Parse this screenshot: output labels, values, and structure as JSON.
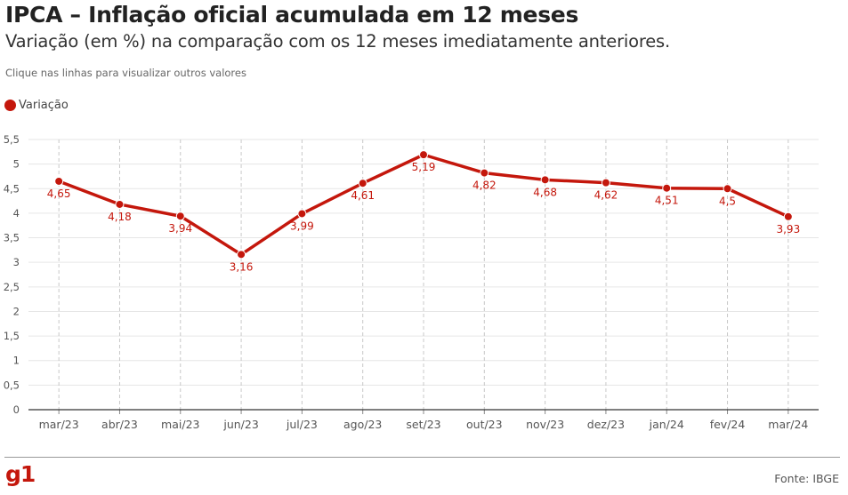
{
  "header": {
    "title": "IPCA – Inflação oficial acumulada em 12 meses",
    "subtitle": "Variação (em %) na comparação com os 12 meses imediatamente anteriores.",
    "hint": "Clique nas linhas para visualizar outros valores"
  },
  "footer": {
    "logo": "g1",
    "source": "Fonte: IBGE"
  },
  "colors": {
    "series": "#c4170c",
    "grid": "#e6e6e6",
    "axis": "#333333"
  },
  "chart_data": {
    "type": "line",
    "title": "IPCA – Inflação oficial acumulada em 12 meses",
    "subtitle": "Variação (em %) na comparação com os 12 meses imediatamente anteriores.",
    "categories": [
      "mar/23",
      "abr/23",
      "mai/23",
      "jun/23",
      "jul/23",
      "ago/23",
      "set/23",
      "out/23",
      "nov/23",
      "dez/23",
      "jan/24",
      "fev/24",
      "mar/24"
    ],
    "series": [
      {
        "name": "Variação",
        "values": [
          4.65,
          4.18,
          3.94,
          3.16,
          3.99,
          4.61,
          5.19,
          4.82,
          4.68,
          4.62,
          4.51,
          4.5,
          3.93
        ],
        "labels": [
          "4,65",
          "4,18",
          "3,94",
          "3,16",
          "3,99",
          "4,61",
          "5,19",
          "4,82",
          "4,68",
          "4,62",
          "4,51",
          "4,5",
          "3,93"
        ]
      }
    ],
    "ylim": [
      0,
      5.5
    ],
    "yticks": [
      0,
      0.5,
      1,
      1.5,
      2,
      2.5,
      3,
      3.5,
      4,
      4.5,
      5,
      5.5
    ],
    "ytick_labels": [
      "0",
      "0,5",
      "1",
      "1,5",
      "2",
      "2,5",
      "3",
      "3,5",
      "4",
      "4,5",
      "5",
      "5,5"
    ],
    "xlabel": "",
    "ylabel": "",
    "grid": true,
    "legend": "top-left"
  }
}
